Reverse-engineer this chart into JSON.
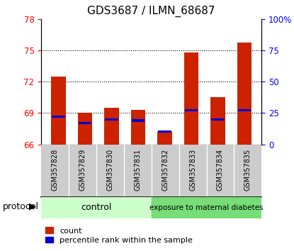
{
  "title": "GDS3687 / ILMN_68687",
  "samples": [
    "GSM357828",
    "GSM357829",
    "GSM357830",
    "GSM357831",
    "GSM357832",
    "GSM357833",
    "GSM357834",
    "GSM357835"
  ],
  "red_values": [
    72.5,
    69.0,
    69.5,
    69.3,
    67.2,
    74.8,
    70.5,
    75.7
  ],
  "blue_values_pct": [
    22,
    17,
    20,
    19,
    10,
    27,
    20,
    27
  ],
  "ylim_left": [
    66,
    78
  ],
  "ylim_right": [
    0,
    100
  ],
  "yticks_left": [
    66,
    69,
    72,
    75,
    78
  ],
  "yticks_right": [
    0,
    25,
    50,
    75,
    100
  ],
  "ytick_labels_right": [
    "0",
    "25",
    "50",
    "75",
    "100%"
  ],
  "hline_y": [
    69,
    72,
    75
  ],
  "bar_width": 0.55,
  "red_color": "#cc2200",
  "blue_color": "#0000cc",
  "control_color": "#ccffcc",
  "diabetes_color": "#77dd77",
  "control_label": "control",
  "diabetes_label": "exposure to maternal diabetes",
  "protocol_label": "protocol",
  "legend_count": "count",
  "legend_pct": "percentile rank within the sample",
  "base_value": 66,
  "label_bg_color": "#cccccc",
  "title_fontsize": 11,
  "tick_fontsize": 8.5,
  "label_fontsize": 7,
  "protocol_fontsize": 9,
  "legend_fontsize": 8
}
